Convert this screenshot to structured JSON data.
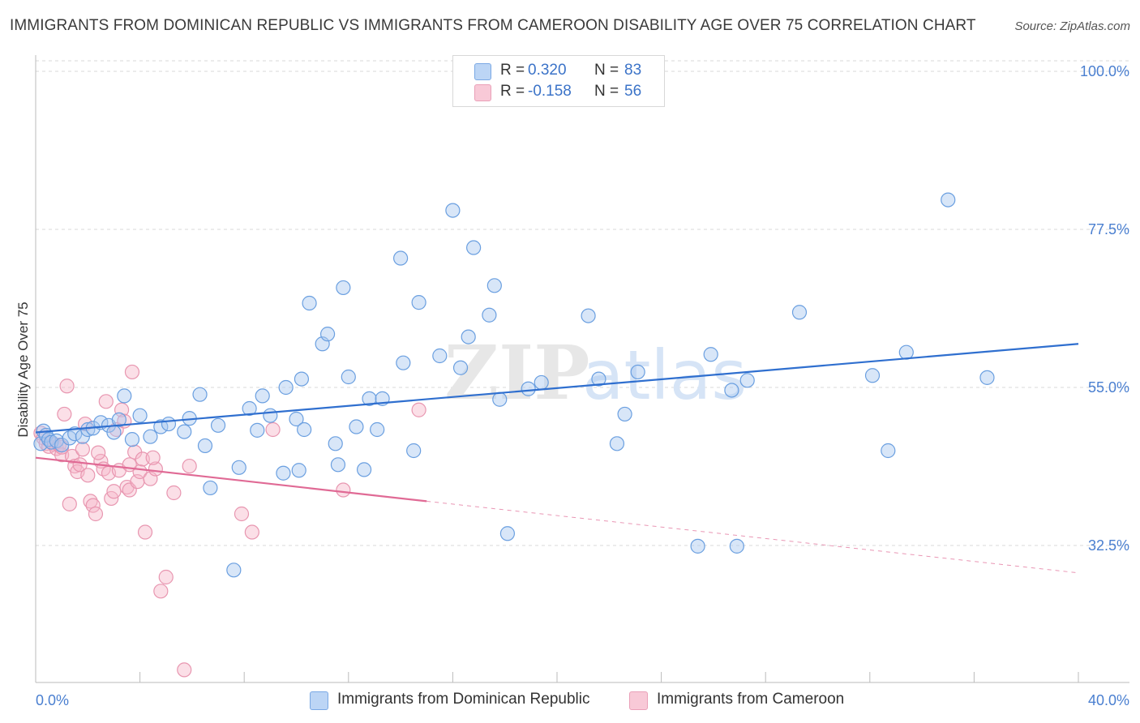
{
  "title": "IMMIGRANTS FROM DOMINICAN REPUBLIC VS IMMIGRANTS FROM CAMEROON DISABILITY AGE OVER 75 CORRELATION CHART",
  "source": "Source: ZipAtlas.com",
  "watermark": {
    "zip": "ZIP",
    "atlas": "atlas"
  },
  "legend": {
    "rows": [
      {
        "r_label": "R =",
        "r_value": "0.320",
        "n_label": "N =",
        "n_value": "83"
      },
      {
        "r_label": "R =",
        "r_value": "-0.158",
        "n_label": "N =",
        "n_value": "56"
      }
    ]
  },
  "colors": {
    "blue_fill": "#a9c8f0",
    "blue_stroke": "#6a9fe0",
    "blue_line": "#2f6fcf",
    "pink_fill": "#f6b7c9",
    "pink_stroke": "#e896b0",
    "pink_line": "#e06a95",
    "tick_text": "#4a7fd0",
    "grid": "#d9d9d9"
  },
  "chart_data": {
    "type": "scatter",
    "title": "IMMIGRANTS FROM DOMINICAN REPUBLIC VS IMMIGRANTS FROM CAMEROON DISABILITY AGE OVER 75 CORRELATION CHART",
    "xlabel": "",
    "ylabel": "Disability Age Over 75",
    "xlim": [
      0,
      40
    ],
    "ylim": [
      13,
      101.5
    ],
    "x_tick_labels": [
      "0.0%",
      "40.0%"
    ],
    "y_ticks": [
      {
        "value": 100,
        "label": "100.0%"
      },
      {
        "value": 77.5,
        "label": "77.5%"
      },
      {
        "value": 55,
        "label": "55.0%"
      },
      {
        "value": 32.5,
        "label": "32.5%"
      }
    ],
    "grid": true,
    "legend_position": "top-center",
    "series": [
      {
        "name": "Immigrants from Dominican Republic",
        "color": "#6a9fe0",
        "trend": {
          "x": [
            0,
            40
          ],
          "y": [
            48.6,
            61.2
          ]
        },
        "points": [
          [
            0.2,
            47.0
          ],
          [
            0.3,
            48.8
          ],
          [
            0.4,
            48.2
          ],
          [
            0.5,
            47.6
          ],
          [
            0.6,
            47.2
          ],
          [
            0.8,
            47.4
          ],
          [
            1.0,
            46.8
          ],
          [
            1.3,
            47.8
          ],
          [
            1.5,
            48.4
          ],
          [
            1.8,
            48.0
          ],
          [
            2.0,
            49.0
          ],
          [
            2.2,
            49.2
          ],
          [
            2.5,
            50.0
          ],
          [
            2.8,
            49.6
          ],
          [
            3.0,
            48.6
          ],
          [
            3.2,
            50.4
          ],
          [
            3.4,
            53.8
          ],
          [
            3.7,
            47.6
          ],
          [
            4.0,
            51.0
          ],
          [
            4.4,
            48.0
          ],
          [
            4.8,
            49.4
          ],
          [
            5.1,
            49.8
          ],
          [
            5.7,
            48.7
          ],
          [
            5.9,
            50.6
          ],
          [
            6.3,
            54.0
          ],
          [
            6.5,
            46.7
          ],
          [
            6.7,
            40.7
          ],
          [
            7.0,
            49.6
          ],
          [
            7.6,
            29.0
          ],
          [
            7.8,
            43.6
          ],
          [
            8.2,
            52.0
          ],
          [
            8.5,
            48.9
          ],
          [
            8.7,
            53.8
          ],
          [
            9.0,
            51.0
          ],
          [
            9.5,
            42.8
          ],
          [
            9.6,
            55.0
          ],
          [
            10.0,
            50.5
          ],
          [
            10.1,
            43.2
          ],
          [
            10.2,
            56.2
          ],
          [
            10.3,
            49.0
          ],
          [
            10.5,
            67.0
          ],
          [
            11.0,
            61.2
          ],
          [
            11.2,
            62.6
          ],
          [
            11.5,
            47.0
          ],
          [
            11.6,
            44.0
          ],
          [
            11.8,
            69.2
          ],
          [
            12.0,
            56.5
          ],
          [
            12.3,
            49.4
          ],
          [
            12.6,
            43.3
          ],
          [
            12.8,
            53.4
          ],
          [
            13.1,
            49.0
          ],
          [
            13.3,
            53.4
          ],
          [
            14.0,
            73.4
          ],
          [
            14.1,
            58.5
          ],
          [
            14.5,
            46.0
          ],
          [
            14.7,
            67.1
          ],
          [
            15.5,
            59.5
          ],
          [
            16.0,
            80.2
          ],
          [
            16.3,
            57.8
          ],
          [
            16.6,
            62.2
          ],
          [
            16.8,
            74.9
          ],
          [
            17.4,
            65.3
          ],
          [
            17.6,
            69.5
          ],
          [
            17.8,
            53.3
          ],
          [
            18.1,
            34.2
          ],
          [
            18.9,
            54.8
          ],
          [
            19.4,
            55.7
          ],
          [
            21.2,
            65.2
          ],
          [
            21.6,
            56.2
          ],
          [
            22.3,
            47.0
          ],
          [
            22.6,
            51.2
          ],
          [
            23.1,
            57.2
          ],
          [
            25.4,
            32.4
          ],
          [
            25.9,
            59.7
          ],
          [
            26.7,
            54.6
          ],
          [
            26.9,
            32.4
          ],
          [
            27.3,
            56.0
          ],
          [
            29.3,
            65.7
          ],
          [
            32.1,
            56.7
          ],
          [
            32.7,
            46.0
          ],
          [
            33.4,
            60.0
          ],
          [
            35.0,
            81.7
          ],
          [
            36.5,
            56.4
          ]
        ]
      },
      {
        "name": "Immigrants from Cameroon",
        "color": "#e896b0",
        "trend": {
          "x": [
            0,
            15
          ],
          "y": [
            45.0,
            38.8
          ]
        },
        "trend_dashed": {
          "x": [
            15,
            40
          ],
          "y": [
            38.8,
            28.6
          ]
        },
        "points": [
          [
            0.2,
            48.5
          ],
          [
            0.3,
            47.8
          ],
          [
            0.4,
            47.0
          ],
          [
            0.5,
            46.6
          ],
          [
            0.6,
            47.2
          ],
          [
            0.7,
            46.9
          ],
          [
            0.8,
            46.3
          ],
          [
            0.9,
            46.8
          ],
          [
            1.0,
            45.4
          ],
          [
            1.1,
            51.2
          ],
          [
            1.2,
            55.2
          ],
          [
            1.3,
            38.4
          ],
          [
            1.4,
            45.2
          ],
          [
            1.5,
            43.8
          ],
          [
            1.6,
            43.0
          ],
          [
            1.7,
            44.0
          ],
          [
            1.8,
            46.2
          ],
          [
            1.9,
            49.8
          ],
          [
            2.0,
            42.5
          ],
          [
            2.1,
            38.8
          ],
          [
            2.2,
            38.2
          ],
          [
            2.3,
            37.0
          ],
          [
            2.5,
            44.5
          ],
          [
            2.6,
            43.4
          ],
          [
            2.7,
            53.0
          ],
          [
            2.8,
            42.8
          ],
          [
            2.9,
            39.2
          ],
          [
            3.0,
            40.2
          ],
          [
            3.1,
            49.0
          ],
          [
            3.2,
            43.2
          ],
          [
            3.3,
            51.8
          ],
          [
            3.4,
            50.2
          ],
          [
            3.5,
            40.8
          ],
          [
            3.6,
            40.4
          ],
          [
            3.7,
            57.2
          ],
          [
            3.8,
            45.8
          ],
          [
            3.9,
            41.6
          ],
          [
            4.0,
            43.0
          ],
          [
            4.1,
            44.8
          ],
          [
            4.2,
            34.4
          ],
          [
            4.4,
            42.0
          ],
          [
            4.6,
            43.4
          ],
          [
            4.8,
            26.0
          ],
          [
            5.0,
            28.0
          ],
          [
            5.3,
            40.0
          ],
          [
            5.7,
            14.8
          ],
          [
            5.9,
            43.8
          ],
          [
            7.9,
            37.0
          ],
          [
            8.3,
            34.4
          ],
          [
            9.1,
            49.0
          ],
          [
            11.8,
            40.4
          ],
          [
            14.7,
            51.8
          ],
          [
            1.0,
            46.5
          ],
          [
            2.4,
            45.7
          ],
          [
            3.6,
            44.0
          ],
          [
            4.5,
            45.0
          ]
        ]
      }
    ]
  }
}
